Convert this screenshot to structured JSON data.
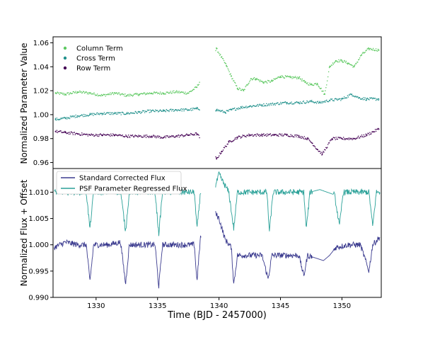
{
  "figure": {
    "xlabel": "Time (BJD - 2457000)",
    "xlim": [
      1326.5,
      1353.2
    ]
  },
  "chart_data": [
    {
      "type": "scatter",
      "title": "",
      "ylabel": "Normalized Parameter Value",
      "ylim": [
        0.955,
        1.065
      ],
      "yticks": [
        "0.96",
        "0.98",
        "1.00",
        "1.02",
        "1.04",
        "1.06"
      ],
      "legend_position": "top-left",
      "series": [
        {
          "name": "Column Term",
          "color": "#5ec962",
          "points": [
            [
              1326.7,
              1.018
            ],
            [
              1327.5,
              1.017
            ],
            [
              1328.5,
              1.019
            ],
            [
              1329.5,
              1.018
            ],
            [
              1330.5,
              1.016
            ],
            [
              1331.5,
              1.018
            ],
            [
              1332.5,
              1.016
            ],
            [
              1333.5,
              1.017
            ],
            [
              1334.5,
              1.018
            ],
            [
              1335.5,
              1.018
            ],
            [
              1336.5,
              1.019
            ],
            [
              1337.5,
              1.018
            ],
            [
              1338.2,
              1.023
            ],
            [
              1339.8,
              1.055
            ],
            [
              1340.2,
              1.048
            ],
            [
              1340.6,
              1.041
            ],
            [
              1341.0,
              1.032
            ],
            [
              1341.5,
              1.022
            ],
            [
              1342.0,
              1.02
            ],
            [
              1342.6,
              1.03
            ],
            [
              1343.0,
              1.03
            ],
            [
              1343.6,
              1.027
            ],
            [
              1344.3,
              1.028
            ],
            [
              1345.0,
              1.032
            ],
            [
              1345.8,
              1.031
            ],
            [
              1346.5,
              1.031
            ],
            [
              1347.0,
              1.027
            ],
            [
              1347.5,
              1.025
            ],
            [
              1348.0,
              1.026
            ],
            [
              1348.6,
              1.017
            ],
            [
              1349.0,
              1.04
            ],
            [
              1349.5,
              1.045
            ],
            [
              1350.0,
              1.045
            ],
            [
              1350.5,
              1.043
            ],
            [
              1351.0,
              1.04
            ],
            [
              1351.6,
              1.05
            ],
            [
              1352.2,
              1.055
            ],
            [
              1353.0,
              1.054
            ]
          ]
        },
        {
          "name": "Cross Term",
          "color": "#21918c",
          "points": [
            [
              1326.7,
              0.996
            ],
            [
              1327.5,
              0.997
            ],
            [
              1328.5,
              0.999
            ],
            [
              1329.5,
              1.0
            ],
            [
              1330.5,
              1.001
            ],
            [
              1331.5,
              1.001
            ],
            [
              1332.5,
              1.001
            ],
            [
              1333.5,
              1.002
            ],
            [
              1334.5,
              1.003
            ],
            [
              1335.5,
              1.003
            ],
            [
              1336.5,
              1.004
            ],
            [
              1337.5,
              1.004
            ],
            [
              1338.2,
              1.005
            ],
            [
              1339.8,
              1.004
            ],
            [
              1340.5,
              1.002
            ],
            [
              1341.0,
              1.004
            ],
            [
              1341.8,
              1.006
            ],
            [
              1342.5,
              1.007
            ],
            [
              1343.5,
              1.008
            ],
            [
              1344.5,
              1.009
            ],
            [
              1345.5,
              1.01
            ],
            [
              1346.5,
              1.01
            ],
            [
              1347.5,
              1.011
            ],
            [
              1348.2,
              1.01
            ],
            [
              1349.0,
              1.012
            ],
            [
              1350.0,
              1.013
            ],
            [
              1350.8,
              1.017
            ],
            [
              1351.4,
              1.014
            ],
            [
              1352.0,
              1.013
            ],
            [
              1353.0,
              1.013
            ]
          ]
        },
        {
          "name": "Row Term",
          "color": "#440154",
          "points": [
            [
              1326.7,
              0.986
            ],
            [
              1327.5,
              0.985
            ],
            [
              1328.5,
              0.984
            ],
            [
              1329.5,
              0.983
            ],
            [
              1330.5,
              0.983
            ],
            [
              1331.5,
              0.983
            ],
            [
              1332.5,
              0.982
            ],
            [
              1333.5,
              0.982
            ],
            [
              1334.5,
              0.982
            ],
            [
              1335.5,
              0.981
            ],
            [
              1336.5,
              0.982
            ],
            [
              1337.5,
              0.983
            ],
            [
              1338.2,
              0.984
            ],
            [
              1339.8,
              0.963
            ],
            [
              1340.2,
              0.969
            ],
            [
              1340.8,
              0.977
            ],
            [
              1341.5,
              0.981
            ],
            [
              1342.5,
              0.983
            ],
            [
              1343.5,
              0.983
            ],
            [
              1344.5,
              0.983
            ],
            [
              1345.5,
              0.983
            ],
            [
              1346.5,
              0.982
            ],
            [
              1347.2,
              0.98
            ],
            [
              1347.6,
              0.976
            ],
            [
              1348.0,
              0.971
            ],
            [
              1348.4,
              0.967
            ],
            [
              1349.2,
              0.98
            ],
            [
              1350.0,
              0.98
            ],
            [
              1351.0,
              0.98
            ],
            [
              1352.0,
              0.983
            ],
            [
              1353.0,
              0.988
            ]
          ]
        }
      ]
    },
    {
      "type": "line",
      "title": "",
      "ylabel": "Normalized Flux + Offset",
      "ylim": [
        0.99,
        1.0145
      ],
      "yticks": [
        "0.990",
        "0.995",
        "1.000",
        "1.005",
        "1.010"
      ],
      "legend_position": "top-left",
      "series": [
        {
          "name": "Standard Corrected Flux",
          "color": "#3b3b8f",
          "points": [
            [
              1326.6,
              0.9995
            ],
            [
              1327.5,
              1.0005
            ],
            [
              1328.5,
              1.0
            ],
            [
              1329.2,
              1.0
            ],
            [
              1329.5,
              0.993
            ],
            [
              1329.8,
              1.0
            ],
            [
              1331.0,
              1.0
            ],
            [
              1332.0,
              1.0005
            ],
            [
              1332.4,
              0.9925
            ],
            [
              1332.7,
              1.0
            ],
            [
              1334.0,
              1.0
            ],
            [
              1334.8,
              1.0
            ],
            [
              1335.1,
              0.992
            ],
            [
              1335.4,
              1.0
            ],
            [
              1337.0,
              1.0
            ],
            [
              1338.0,
              1.0
            ],
            [
              1338.2,
              0.993
            ],
            [
              1338.5,
              1.0015
            ],
            [
              1339.7,
              1.006
            ],
            [
              1340.0,
              1.005
            ],
            [
              1340.5,
              1.001
            ],
            [
              1341.0,
              0.9995
            ],
            [
              1341.2,
              0.9925
            ],
            [
              1341.5,
              0.998
            ],
            [
              1342.5,
              0.998
            ],
            [
              1343.5,
              0.998
            ],
            [
              1344.0,
              0.9935
            ],
            [
              1344.3,
              0.998
            ],
            [
              1345.5,
              0.998
            ],
            [
              1346.5,
              0.998
            ],
            [
              1346.9,
              0.994
            ],
            [
              1347.2,
              0.998
            ],
            [
              1348.5,
              0.997
            ],
            [
              1349.0,
              0.998
            ],
            [
              1349.5,
              0.9995
            ],
            [
              1350.5,
              1.0
            ],
            [
              1351.5,
              1.0
            ],
            [
              1352.2,
              0.995
            ],
            [
              1352.5,
              1.0
            ],
            [
              1353.1,
              1.0015
            ]
          ]
        },
        {
          "name": "PSF Parameter Regressed Flux",
          "color": "#2aa198",
          "points": [
            [
              1326.6,
              1.01
            ],
            [
              1327.5,
              1.01
            ],
            [
              1328.5,
              1.01
            ],
            [
              1329.2,
              1.01
            ],
            [
              1329.5,
              1.003
            ],
            [
              1329.8,
              1.01
            ],
            [
              1331.0,
              1.01
            ],
            [
              1332.0,
              1.01
            ],
            [
              1332.4,
              1.0025
            ],
            [
              1332.7,
              1.01
            ],
            [
              1334.0,
              1.01
            ],
            [
              1334.8,
              1.01
            ],
            [
              1335.1,
              1.002
            ],
            [
              1335.4,
              1.01
            ],
            [
              1337.0,
              1.01
            ],
            [
              1338.0,
              1.01
            ],
            [
              1338.2,
              1.003
            ],
            [
              1338.5,
              1.01
            ],
            [
              1339.7,
              1.011
            ],
            [
              1340.0,
              1.0135
            ],
            [
              1340.3,
              1.012
            ],
            [
              1340.8,
              1.01
            ],
            [
              1341.2,
              1.003
            ],
            [
              1341.5,
              1.01
            ],
            [
              1343.0,
              1.01
            ],
            [
              1343.9,
              1.01
            ],
            [
              1344.1,
              1.0025
            ],
            [
              1344.4,
              1.01
            ],
            [
              1346.0,
              1.01
            ],
            [
              1346.9,
              1.01
            ],
            [
              1347.1,
              1.003
            ],
            [
              1347.4,
              1.01
            ],
            [
              1348.2,
              1.0105
            ],
            [
              1349.4,
              1.0095
            ],
            [
              1349.8,
              1.0035
            ],
            [
              1350.1,
              1.01
            ],
            [
              1351.5,
              1.01
            ],
            [
              1352.2,
              1.01
            ],
            [
              1352.5,
              1.0035
            ],
            [
              1352.8,
              1.01
            ],
            [
              1353.1,
              1.01
            ]
          ]
        }
      ]
    }
  ]
}
